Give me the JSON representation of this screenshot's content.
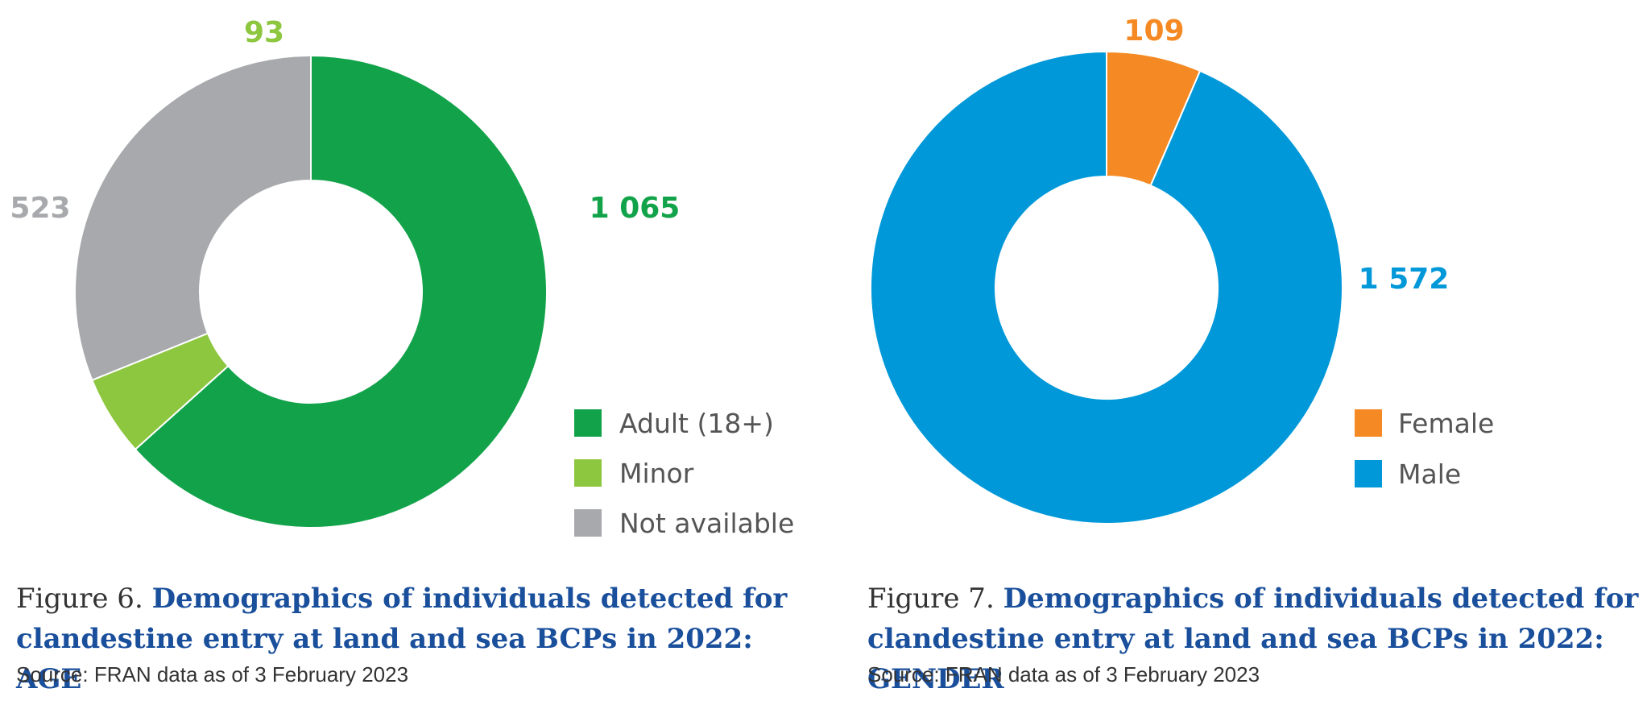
{
  "figures": [
    {
      "number": "Figure 6.",
      "title": "Demographics of individuals detected for clandestine entry at land and sea BCPs in 2022: AGE",
      "source": "Source: FRAN data as of 3 February 2023"
    },
    {
      "number": "Figure 7.",
      "title": "Demographics of individuals detected for clandestine entry at land and sea BCPs in 2022: GENDER",
      "source": "Source: FRAN data as of 3 February 2023"
    }
  ],
  "chart_data": [
    {
      "type": "pie",
      "variant": "donut",
      "categories": [
        "Adult (18+)",
        "Minor",
        "Not available"
      ],
      "values": [
        1065,
        93,
        523
      ],
      "value_labels": [
        "1 065",
        "93",
        "523"
      ],
      "colors": [
        "#12a34a",
        "#8dc63f",
        "#a7a9ac"
      ],
      "legend_placement": "bottom-right"
    },
    {
      "type": "pie",
      "variant": "donut",
      "categories": [
        "Female",
        "Male"
      ],
      "values": [
        109,
        1572
      ],
      "value_labels": [
        "109",
        "1 572"
      ],
      "colors": [
        "#f58a24",
        "#0098d8"
      ],
      "legend_placement": "bottom-right"
    }
  ]
}
